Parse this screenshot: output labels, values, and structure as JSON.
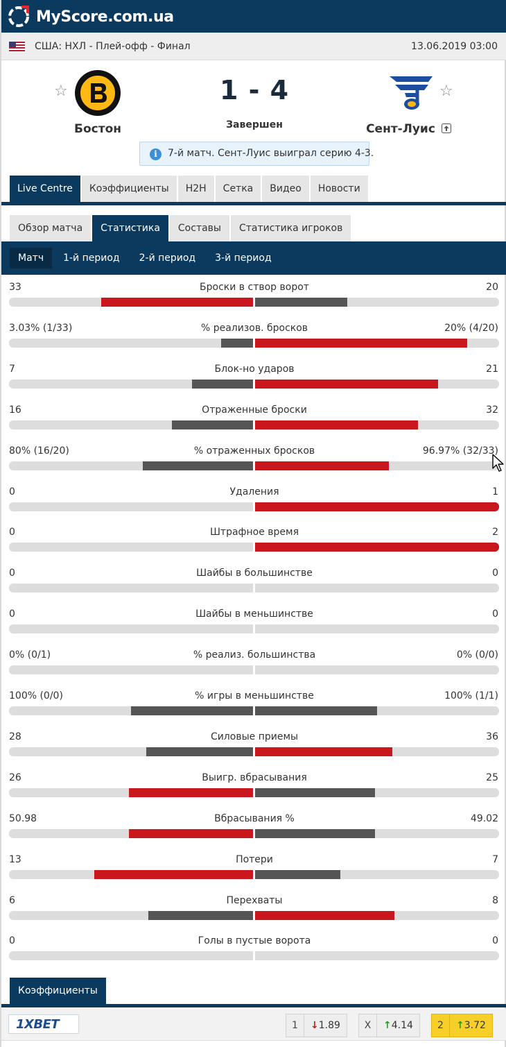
{
  "site": {
    "name": "MyScore.com.ua"
  },
  "match_info": {
    "league": "США: НХЛ - Плей-офф - Финал",
    "date": "13.06.2019 03:00"
  },
  "home": {
    "name": "Бостон"
  },
  "away": {
    "name": "Сент-Луис"
  },
  "score": "1 - 4",
  "status": "Завершен",
  "info_message": "7-й матч. Сент-Луис выиграл серию 4-3.",
  "main_tabs": [
    {
      "label": "Live Centre"
    },
    {
      "label": "Коэффициенты"
    },
    {
      "label": "H2H"
    },
    {
      "label": "Сетка"
    },
    {
      "label": "Видео"
    },
    {
      "label": "Новости"
    }
  ],
  "sub_tabs": [
    {
      "label": "Обзор матча"
    },
    {
      "label": "Статистика"
    },
    {
      "label": "Составы"
    },
    {
      "label": "Статистика игроков"
    }
  ],
  "period_tabs": [
    {
      "label": "Матч"
    },
    {
      "label": "1-й период"
    },
    {
      "label": "2-й период"
    },
    {
      "label": "3-й период"
    }
  ],
  "colors": {
    "leader": "#c8171d",
    "trailer": "#555555",
    "header": "#0c3a5e"
  },
  "stats": [
    {
      "name": "Броски в створ ворот",
      "home": "33",
      "away": "20",
      "home_share": 0.6226,
      "away_share": 0.3774,
      "leader": "home"
    },
    {
      "name": "% реализов. бросков",
      "home": "3.03% (1/33)",
      "away": "20% (4/20)",
      "home_share": 0.1316,
      "away_share": 0.8684,
      "leader": "away"
    },
    {
      "name": "Блок-но ударов",
      "home": "7",
      "away": "21",
      "home_share": 0.25,
      "away_share": 0.75,
      "leader": "away"
    },
    {
      "name": "Отраженные броски",
      "home": "16",
      "away": "32",
      "home_share": 0.3333,
      "away_share": 0.6667,
      "leader": "away"
    },
    {
      "name": "% отраженных бросков",
      "home": "80% (16/20)",
      "away": "96.97% (32/33)",
      "home_share": 0.4521,
      "away_share": 0.5479,
      "leader": "away"
    },
    {
      "name": "Удаления",
      "home": "0",
      "away": "1",
      "home_share": 0,
      "away_share": 1,
      "leader": "away"
    },
    {
      "name": "Штрафное время",
      "home": "0",
      "away": "2",
      "home_share": 0,
      "away_share": 1,
      "leader": "away"
    },
    {
      "name": "Шайбы в большинстве",
      "home": "0",
      "away": "0",
      "home_share": 0,
      "away_share": 0,
      "leader": "none"
    },
    {
      "name": "Шайбы в меньшинстве",
      "home": "0",
      "away": "0",
      "home_share": 0,
      "away_share": 0,
      "leader": "none"
    },
    {
      "name": "% реализ. большинства",
      "home": "0% (0/1)",
      "away": "0% (0/0)",
      "home_share": 0,
      "away_share": 0,
      "leader": "none"
    },
    {
      "name": "% игры в меньшинстве",
      "home": "100% (0/0)",
      "away": "100% (1/1)",
      "home_share": 0.5,
      "away_share": 0.5,
      "leader": "none"
    },
    {
      "name": "Силовые приемы",
      "home": "28",
      "away": "36",
      "home_share": 0.4375,
      "away_share": 0.5625,
      "leader": "away"
    },
    {
      "name": "Выигр. вбрасывания",
      "home": "26",
      "away": "25",
      "home_share": 0.5098,
      "away_share": 0.4902,
      "leader": "home"
    },
    {
      "name": "Вбрасывания %",
      "home": "50.98",
      "away": "49.02",
      "home_share": 0.5098,
      "away_share": 0.4902,
      "leader": "home"
    },
    {
      "name": "Потери",
      "home": "13",
      "away": "7",
      "home_share": 0.65,
      "away_share": 0.35,
      "leader": "home"
    },
    {
      "name": "Перехваты",
      "home": "6",
      "away": "8",
      "home_share": 0.4286,
      "away_share": 0.5714,
      "leader": "away"
    },
    {
      "name": "Голы в пустые ворота",
      "home": "0",
      "away": "0",
      "home_share": 0,
      "away_share": 0,
      "leader": "none"
    }
  ],
  "odds": {
    "tab_label": "Коэффициенты",
    "bookmaker": "1XBET",
    "cells": [
      {
        "label": "1",
        "value": "1.89",
        "trend": "down",
        "best": false
      },
      {
        "label": "X",
        "value": "4.14",
        "trend": "up",
        "best": false
      },
      {
        "label": "2",
        "value": "3.72",
        "trend": "up",
        "best": true
      }
    ]
  }
}
